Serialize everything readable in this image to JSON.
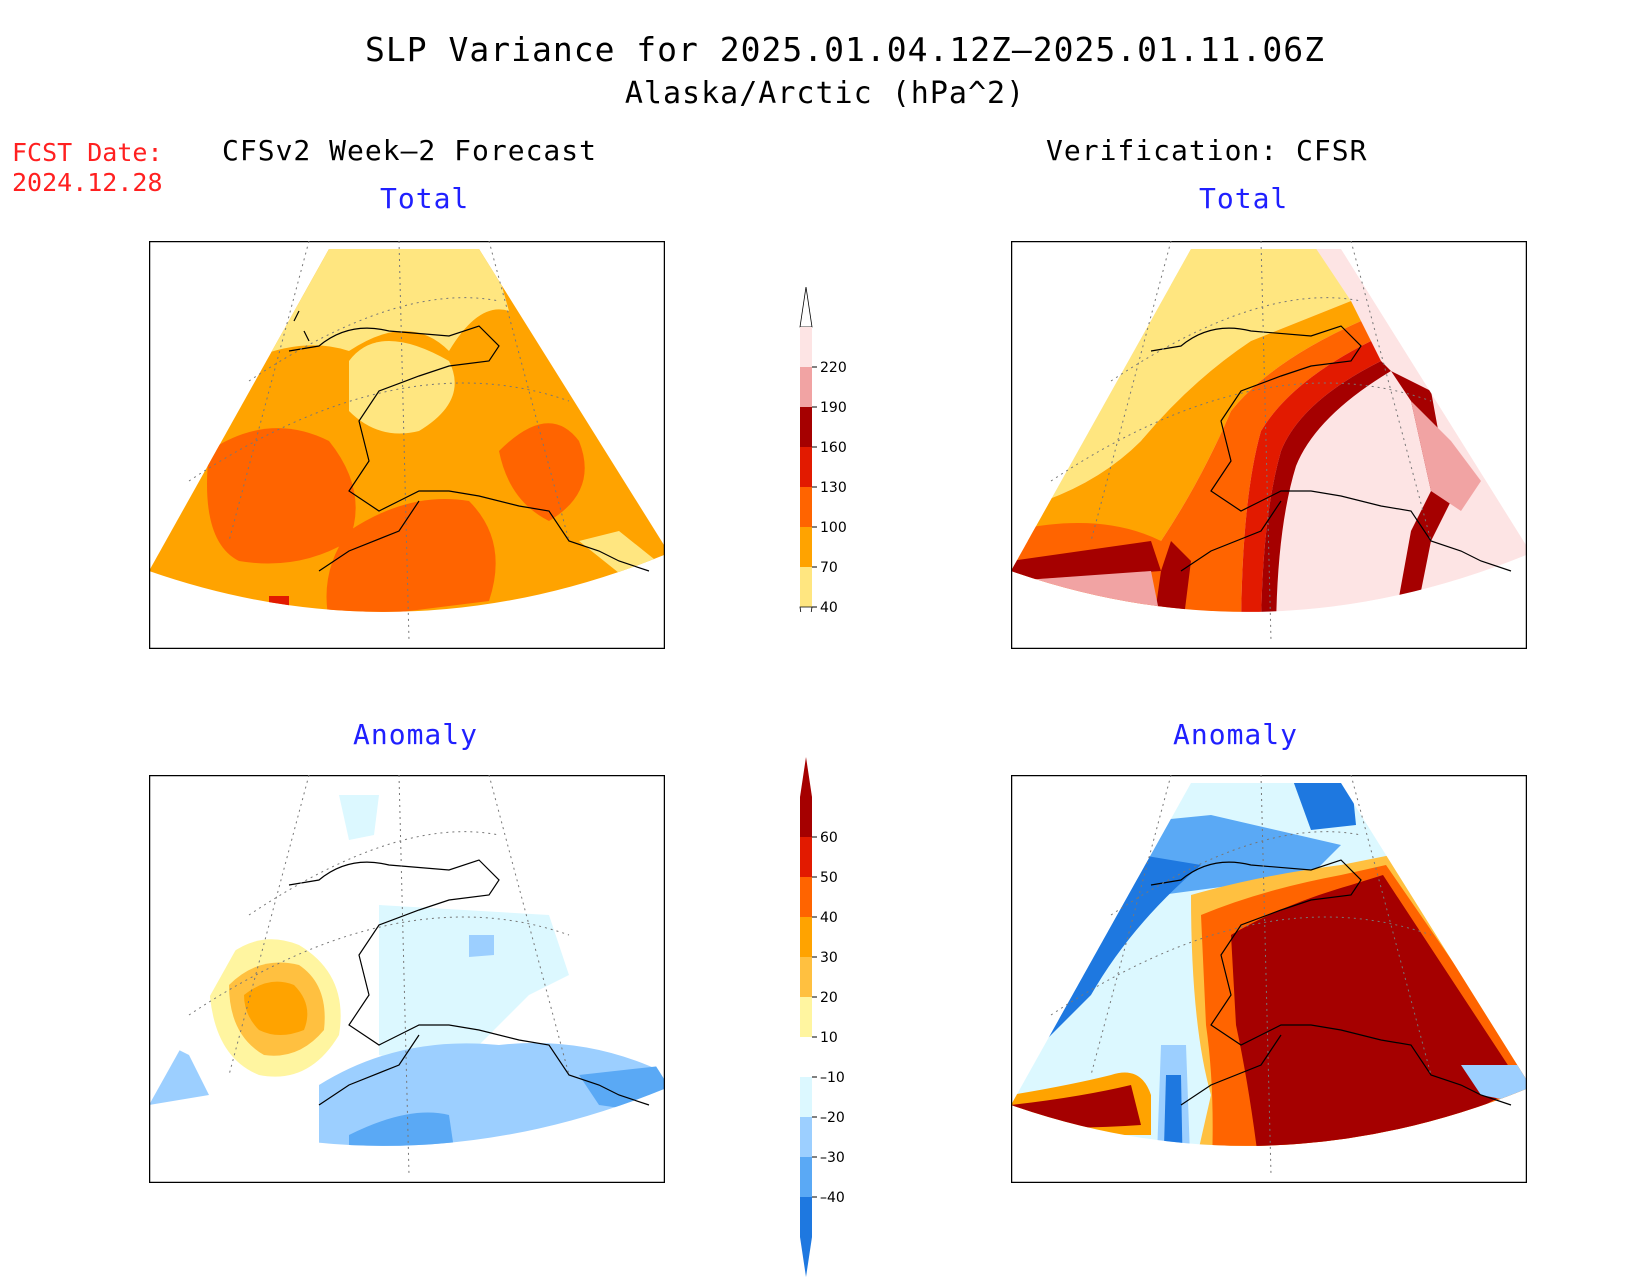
{
  "title": {
    "line1": "SLP Variance for 2025.01.04.12Z–2025.01.11.06Z",
    "line2": "Alaska/Arctic (hPa^2)"
  },
  "fcst_date": {
    "label": "FCST Date:",
    "value": "2024.12.28"
  },
  "columns": {
    "left": "CFSv2 Week–2 Forecast",
    "right": "Verification: CFSR"
  },
  "panels": {
    "top_left": "Total",
    "top_right": "Total",
    "bottom_left": "Anomaly",
    "bottom_right": "Anomaly"
  },
  "colorbar_total": {
    "labels": [
      "220",
      "190",
      "160",
      "130",
      "100",
      "70",
      "40"
    ],
    "colors": [
      "#fde4e4",
      "#f1a3a3",
      "#a50000",
      "#e21a00",
      "#ff6400",
      "#ffa300",
      "#ffe680"
    ]
  },
  "colorbar_anomaly": {
    "labels": [
      "60",
      "50",
      "40",
      "30",
      "20",
      "10",
      "–10",
      "–20",
      "–30",
      "–40"
    ],
    "colors": [
      "#a50000",
      "#e21a00",
      "#ff6400",
      "#ffa300",
      "#ffc040",
      "#fff5a0",
      "#ffffff",
      "#dcf8ff",
      "#9ccfff",
      "#5aa9f5",
      "#1e78e0"
    ]
  },
  "colors": {
    "title_text": "#000000",
    "panel_title_text": "#2020ff",
    "fcst_text": "#ff2020"
  }
}
